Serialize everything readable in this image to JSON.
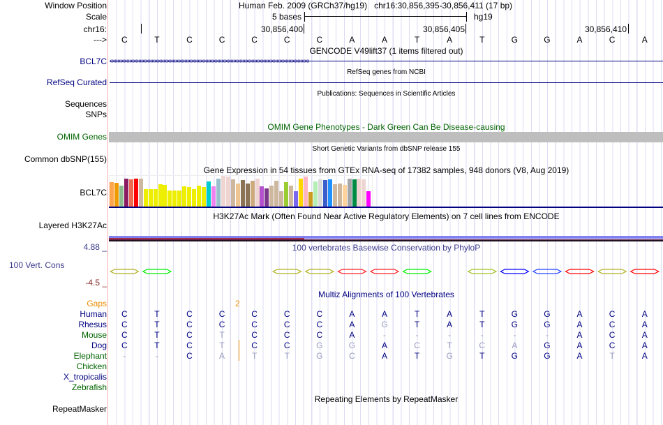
{
  "header": {
    "window_position_label": "Window Position",
    "window_position_value": "Human Feb. 2009 (GRCh37/hg19)   chr16:30,856,395-30,856,411 (17 bp)",
    "scale_label": "Scale",
    "scale_text": "5 bases",
    "scale_assembly": "hg19",
    "chrom_label": "chr16:",
    "coord_ticks": [
      "30,856,400",
      "30,856,405",
      "30,856,410"
    ],
    "strand_label": "--->",
    "reference_bases": [
      "C",
      "T",
      "C",
      "C",
      "C",
      "C",
      "C",
      "A",
      "A",
      "T",
      "A",
      "T",
      "G",
      "G",
      "A",
      "C",
      "A"
    ]
  },
  "tracks": {
    "gencode": {
      "title": "GENCODE V49lift37 (1 items filtered out)",
      "gene": "BCL7C"
    },
    "refseq": {
      "title": "RefSeq genes from NCBI",
      "label": "RefSeq Curated"
    },
    "publications": {
      "title": "Publications: Sequences in Scientific Articles",
      "label1": "Sequences",
      "label2": "SNPs"
    },
    "omim": {
      "title": "OMIM Gene Phenotypes - Dark Green Can Be Disease-causing",
      "label": "OMIM Genes",
      "bar_color": "#bebebe"
    },
    "dbsnp": {
      "title": "Short Genetic Variants from dbSNP release 155",
      "label": "Common dbSNP(155)"
    },
    "gtex": {
      "title": "Gene Expression in 54 tissues from GTEx RNA-seq of 17382 samples, 948 donors (V8, Aug 2019)",
      "label": "BCL7C",
      "relative_levels": [
        0.8,
        0.77,
        0.68,
        0.92,
        0.88,
        0.92,
        0.9,
        0.56,
        0.56,
        0.56,
        0.72,
        0.7,
        0.52,
        0.52,
        0.52,
        0.65,
        0.63,
        0.56,
        0.68,
        0.63,
        0.81,
        0.65,
        0.9,
        0.99,
        0.97,
        0.88,
        0.74,
        0.86,
        0.74,
        0.83,
        0.9,
        0.65,
        0.59,
        0.68,
        0.83,
        0.5,
        0.79,
        0.68,
        0.5,
        0.92,
        0.97,
        0.47,
        0.81,
        0.88,
        0.86,
        0.88,
        0.72,
        0.74,
        0.7,
        0.92,
        0.88,
        0.92,
        0.88,
        0.5
      ],
      "colors": [
        "#FFA54F",
        "#EE9A00",
        "#8FBC8F",
        "#8B1C62",
        "#EE6A50",
        "#FF0000",
        "#CDB79E",
        "#EEEE00",
        "#EEEE00",
        "#EEEE00",
        "#EEEE00",
        "#EEEE00",
        "#EEEE00",
        "#EEEE00",
        "#EEEE00",
        "#EEEE00",
        "#EEEE00",
        "#EEEE00",
        "#EEEE00",
        "#EEEE00",
        "#00CDCD",
        "#EE82EE",
        "#9AC0CD",
        "#EED5D2",
        "#EED5D2",
        "#CDB79E",
        "#EEC591",
        "#8B7355",
        "#8B7355",
        "#CDAA7D",
        "#EED5D2",
        "#B452CD",
        "#7A378B",
        "#CDB79E",
        "#CDB79E",
        "#CDB79E",
        "#9ACD32",
        "#CDB79E",
        "#7A67EE",
        "#FFD700",
        "#FFB6C1",
        "#CD9B1D",
        "#B4EEB4",
        "#D9D9D9",
        "#3A5FCD",
        "#1E90FF",
        "#CDB79E",
        "#CDB79E",
        "#FFD39B",
        "#A6A6A6",
        "#008B45",
        "#EED5D2",
        "#EED5D2",
        "#FF00FF"
      ]
    },
    "h3k27ac": {
      "title": "H3K27Ac Mark (Often Found Near Active Regulatory Elements) on 7 cell lines from ENCODE",
      "label": "Layered H3K27Ac"
    },
    "phylop": {
      "title": "100 vertebrates Basewise Conservation by PhyloP",
      "label": "100 Vert. Cons",
      "max_label": "4.88 _",
      "min_label": "-4.5 _",
      "column_colors": [
        "#b0b020",
        "#00ee00",
        null,
        null,
        null,
        "#b0b020",
        "#b0b020",
        "#ff2020",
        "#ff2020",
        "#00ee00",
        null,
        "#a0c020",
        "#0000ff",
        "#2040ff",
        "#ff0000",
        "#b0b020",
        "#ff0000"
      ]
    },
    "multiz": {
      "title": "Multiz Alignments of 100 Vertebrates",
      "gaps_label": "Gaps",
      "gap_count": "2",
      "species": [
        {
          "name": "Human",
          "color": "#000080",
          "bases": [
            "C",
            "T",
            "C",
            "C",
            "C",
            "C",
            "C",
            "A",
            "A",
            "T",
            "A",
            "T",
            "G",
            "G",
            "A",
            "C",
            "A"
          ],
          "dim": []
        },
        {
          "name": "Rhesus",
          "color": "#000080",
          "bases": [
            "C",
            "T",
            "C",
            "C",
            "C",
            "C",
            "C",
            "A",
            "G",
            "T",
            "A",
            "T",
            "G",
            "G",
            "A",
            "C",
            "A"
          ],
          "dim": [
            8
          ]
        },
        {
          "name": "Mouse",
          "color": "#006400",
          "bases": [
            "C",
            "T",
            "C",
            "T",
            "C",
            "C",
            "C",
            "A",
            "-",
            "-",
            "-",
            "-",
            "-",
            "-",
            "A",
            "C",
            "A"
          ],
          "dim": [
            3,
            8,
            9,
            10,
            11,
            12,
            13
          ]
        },
        {
          "name": "Dog",
          "color": "#000080",
          "bases": [
            "C",
            "T",
            "C",
            "T",
            "C",
            "C",
            "G",
            "G",
            "A",
            "C",
            "T",
            "C",
            "A",
            "G",
            "A",
            "C",
            "A"
          ],
          "dim": [
            3,
            6,
            7,
            9,
            10,
            11,
            12
          ]
        },
        {
          "name": "Elephant",
          "color": "#006400",
          "bases": [
            "-",
            "-",
            "C",
            "A",
            "T",
            "T",
            "G",
            "C",
            "A",
            "T",
            "G",
            "T",
            "G",
            "G",
            "A",
            "T",
            "A"
          ],
          "dim": [
            0,
            1,
            3,
            4,
            5,
            6,
            7,
            10,
            15
          ]
        },
        {
          "name": "Chicken",
          "color": "#006400",
          "bases": [],
          "dim": []
        },
        {
          "name": "X_tropicalis",
          "color": "#000080",
          "bases": [],
          "dim": []
        },
        {
          "name": "Zebrafish",
          "color": "#006400",
          "bases": [],
          "dim": []
        }
      ]
    },
    "repeatmasker": {
      "title": "Repeating Elements by RepeatMasker",
      "label": "RepeatMasker"
    }
  }
}
